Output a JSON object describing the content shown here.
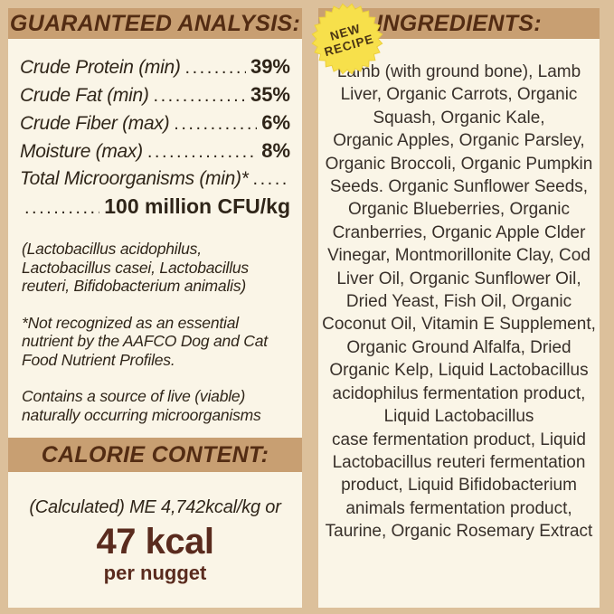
{
  "colors": {
    "bg": "#dcc09b",
    "band": "#c89f72",
    "panel": "#faf5e7",
    "header-text": "#532c13",
    "body-text": "#2f2519",
    "ingredients-text": "#38302a",
    "maroon": "#5a2b1e",
    "badge-yellow": "#f7e04b",
    "badge-edge": "#eccf3d",
    "badge-text": "#4a3413"
  },
  "guaranteed_analysis": {
    "header": "GUARANTEED ANALYSIS:",
    "rows": [
      {
        "label": "Crude Protein (min)",
        "dots": "..........................",
        "value": "39%"
      },
      {
        "label": "Crude Fat (min)",
        "dots": "..........................",
        "value": "35%"
      },
      {
        "label": "Crude Fiber (max)",
        "dots": "..........................",
        "value": "6%"
      },
      {
        "label": "Moisture (max)",
        "dots": "..........................",
        "value": "8%"
      }
    ],
    "total_label": "Total Microorganisms (min)*",
    "total_dots": "..............",
    "cfu_dots": "..............",
    "cfu_value": "100 million CFU/kg",
    "notes": [
      "(Lactobacillus acidophilus, Lactobacillus casei, Lactobacillus reuteri, Bifidobacterium animalis)",
      "*Not recognized as an essential nutrient by the AAFCO Dog and Cat Food Nutrient Profiles.",
      "Contains a source of live (viable) naturally occurring microorganisms"
    ]
  },
  "calorie_content": {
    "header": "CALORIE CONTENT:",
    "line1": "(Calculated) ME 4,742kcal/kg or",
    "kcal": "47 kcal",
    "unit": "per nugget"
  },
  "ingredients": {
    "header": "INGREDIENTS:",
    "badge": {
      "line1": "NEW",
      "line2": "RECIPE"
    },
    "text": "Lamb (with ground bone), Lamb\nLiver, Organic Carrots, Organic\nSquash, Organic Kale,\nOrganic Apples, Organic Parsley,\nOrganic Broccoli, Organic Pumpkin\nSeeds. Organic Sunflower Seeds,\nOrganic Blueberries, Organic\nCranberries, Organic Apple Clder\nVinegar, Montmorillonite Clay, Cod\nLiver Oil, Organic Sunflower Oil,\nDried Yeast, Fish Oil, Organic\nCoconut Oil, Vitamin E Supplement,\nOrganic Ground Alfalfa, Dried\nOrganic Kelp, Liquid Lactobacillus\nacidophilus fermentation product,\nLiquid Lactobacillus\ncase fermentation product, Liquid\nLactobacillus reuteri fermentation\nproduct, Liquid Bifidobacterium\nanimals fermentation product,\nTaurine, Organic Rosemary Extract"
  }
}
